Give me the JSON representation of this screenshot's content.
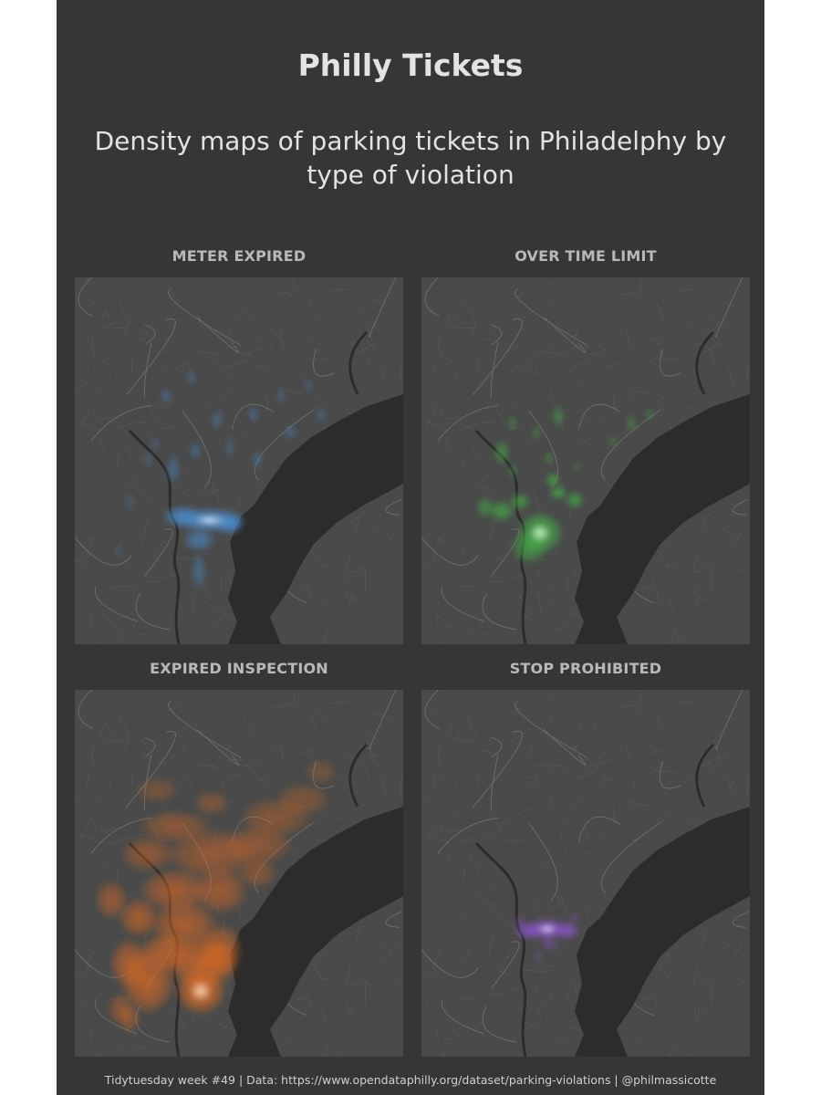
{
  "title": "Philly Tickets",
  "subtitle": "Density maps of parking tickets in Philadelphy by type of violation",
  "panels": [
    {
      "label": "METER EXPIRED",
      "color": "#4a8fd4",
      "highlight": "#d7ecff",
      "pattern": "meter"
    },
    {
      "label": "OVER TIME LIMIT",
      "color": "#43b545",
      "highlight": "#d6ffd3",
      "pattern": "overtime"
    },
    {
      "label": "EXPIRED INSPECTION",
      "color": "#e06a22",
      "highlight": "#ffe0c2",
      "pattern": "inspection"
    },
    {
      "label": "STOP PROHIBITED",
      "color": "#8e55d6",
      "highlight": "#eadcff",
      "pattern": "stop"
    }
  ],
  "footer": "Tidytuesday week #49 | Data: https://www.opendataphilly.org/dataset/parking-violations | @philmassicotte"
}
